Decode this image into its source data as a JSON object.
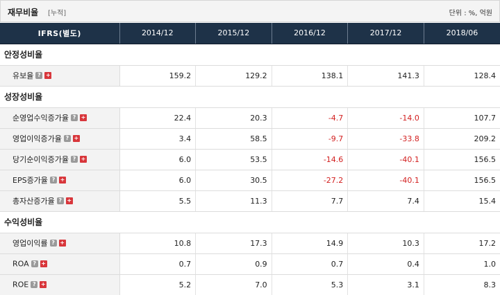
{
  "header": {
    "title": "재무비율",
    "subtitle": "[누적]",
    "unit": "단위 : %, 억원"
  },
  "table": {
    "columns": [
      "IFRS(별도)",
      "2014/12",
      "2015/12",
      "2016/12",
      "2017/12",
      "2018/06"
    ],
    "sections": [
      {
        "title": "안정성비율",
        "rows": [
          {
            "label": "유보율",
            "values": [
              "159.2",
              "129.2",
              "138.1",
              "141.3",
              "128.4"
            ]
          }
        ]
      },
      {
        "title": "성장성비율",
        "rows": [
          {
            "label": "순영업수익증가율",
            "values": [
              "22.4",
              "20.3",
              "-4.7",
              "-14.0",
              "107.7"
            ]
          },
          {
            "label": "영업이익증가율",
            "values": [
              "3.4",
              "58.5",
              "-9.7",
              "-33.8",
              "209.2"
            ]
          },
          {
            "label": "당기순이익증가율",
            "values": [
              "6.0",
              "53.5",
              "-14.6",
              "-40.1",
              "156.5"
            ]
          },
          {
            "label": "EPS증가율",
            "values": [
              "6.0",
              "30.5",
              "-27.2",
              "-40.1",
              "156.5"
            ]
          },
          {
            "label": "총자산증가율",
            "values": [
              "5.5",
              "11.3",
              "7.7",
              "7.4",
              "15.4"
            ]
          }
        ]
      },
      {
        "title": "수익성비율",
        "rows": [
          {
            "label": "영업이익률",
            "values": [
              "10.8",
              "17.3",
              "14.9",
              "10.3",
              "17.2"
            ]
          },
          {
            "label": "ROA",
            "values": [
              "0.7",
              "0.9",
              "0.7",
              "0.4",
              "1.0"
            ]
          },
          {
            "label": "ROE",
            "values": [
              "5.2",
              "7.0",
              "5.3",
              "3.1",
              "8.3"
            ]
          }
        ]
      }
    ]
  },
  "icons": {
    "help": "help-icon",
    "expand": "expand-icon"
  },
  "colors": {
    "header_bg": "#1e3248",
    "negative": "#d21e1e",
    "label_bg": "#f3f3f3"
  }
}
